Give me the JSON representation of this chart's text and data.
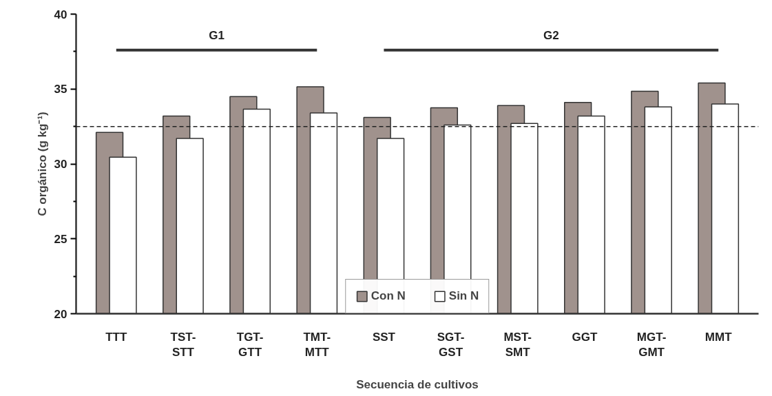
{
  "chart_data": {
    "type": "bar",
    "xlabel": "Secuencia de cultivos",
    "ylabel": "C orgánico (g kg⁻¹)",
    "categories": [
      "TTT",
      "TST-\nSTT",
      "TGT-\nGTT",
      "TMT-\nMTT",
      "SST",
      "SGT-\nGST",
      "MST-\nSMT",
      "GGT",
      "MGT-\nGMT",
      "MMT"
    ],
    "series": [
      {
        "name": "Con N",
        "color": "#a0928d",
        "values": [
          32.1,
          33.2,
          34.5,
          35.15,
          33.1,
          33.75,
          33.9,
          34.1,
          34.85,
          35.4
        ]
      },
      {
        "name": "Sin N",
        "color": "#ffffff",
        "values": [
          30.45,
          31.7,
          33.65,
          33.4,
          31.7,
          32.6,
          32.7,
          33.2,
          33.8,
          34.0
        ]
      },
      {
        "name": "G1",
        "type": "line",
        "color": "#333333",
        "values": [
          37.6,
          37.6,
          37.6,
          37.6,
          null,
          null,
          null,
          null,
          null,
          null
        ]
      },
      {
        "name": "G2",
        "type": "line",
        "color": "#333333",
        "values": [
          null,
          null,
          null,
          null,
          37.6,
          37.6,
          37.6,
          37.6,
          37.6,
          37.6
        ]
      }
    ],
    "ylim": [
      20,
      40
    ],
    "yticks": [
      20,
      {
        "value": 22.5,
        "label": null
      },
      25,
      {
        "value": 27.5,
        "label": null
      },
      30,
      {
        "value": 32.5,
        "label": null
      },
      35,
      {
        "value": 37.5,
        "label": null
      },
      40
    ],
    "ref_lines": [
      {
        "axis": "y",
        "value": 32.5,
        "line_style": "dashed",
        "color": "#222222"
      }
    ],
    "legend": "bottom",
    "grid": false
  }
}
